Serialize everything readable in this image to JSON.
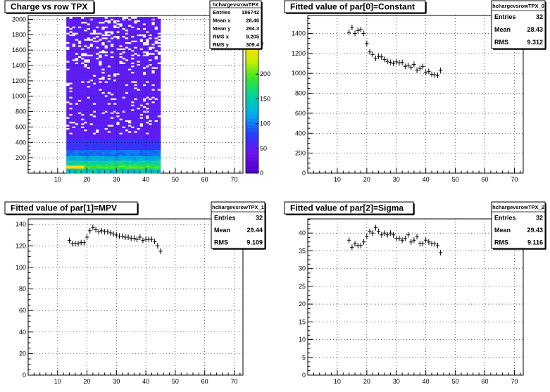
{
  "chart_data": [
    {
      "type": "heatmap",
      "title": "Charge vs row TPX",
      "xlim": [
        0,
        73
      ],
      "ylim": [
        0,
        2050
      ],
      "xticks": [
        10,
        20,
        30,
        40,
        50,
        60,
        70
      ],
      "yticks": [
        200,
        400,
        600,
        800,
        1000,
        1200,
        1400,
        1600,
        1800,
        2000
      ],
      "x_range_filled": [
        13,
        45
      ],
      "grid": true,
      "colorbar": {
        "min": 0,
        "max": 260,
        "ticks": [
          0,
          50,
          100,
          150,
          200
        ],
        "partial_top_label": "0"
      },
      "stats": {
        "name": "hchargevsrowTPX",
        "rows": [
          {
            "label": "Entries",
            "value": "186742"
          },
          {
            "label": "Mean x",
            "value": "28.46"
          },
          {
            "label": "Mean y",
            "value": "294.3"
          },
          {
            "label": "RMS x",
            "value": "9.205"
          },
          {
            "label": "RMS y",
            "value": "309.4"
          }
        ]
      }
    },
    {
      "type": "scatter",
      "title": "Fitted value of par[0]=Constant",
      "xlim": [
        0,
        73
      ],
      "ylim": [
        0,
        1580
      ],
      "xticks": [
        10,
        20,
        30,
        40,
        50,
        60,
        70
      ],
      "yticks": [
        0,
        200,
        400,
        600,
        800,
        1000,
        1200,
        1400
      ],
      "grid": true,
      "x": [
        14,
        15,
        16,
        17,
        18,
        19,
        20,
        21,
        22,
        23,
        24,
        25,
        26,
        27,
        28,
        29,
        30,
        31,
        32,
        33,
        34,
        35,
        36,
        37,
        38,
        39,
        40,
        41,
        42,
        43,
        44,
        45
      ],
      "y": [
        1410,
        1460,
        1400,
        1430,
        1440,
        1400,
        1300,
        1215,
        1190,
        1150,
        1170,
        1165,
        1140,
        1120,
        1110,
        1100,
        1115,
        1105,
        1110,
        1070,
        1080,
        1060,
        1090,
        1030,
        1050,
        1070,
        1010,
        1020,
        990,
        985,
        980,
        1030
      ],
      "stats": {
        "name": "hchargevsrowTPX_0",
        "rows": [
          {
            "label": "Entries",
            "value": "32"
          },
          {
            "label": "Mean",
            "value": "28.43"
          },
          {
            "label": "RMS",
            "value": "9.312"
          }
        ]
      }
    },
    {
      "type": "scatter",
      "title": "Fitted value of par[1]=MPV",
      "xlim": [
        0,
        73
      ],
      "ylim": [
        0,
        145
      ],
      "xticks": [
        10,
        20,
        30,
        40,
        50,
        60,
        70
      ],
      "yticks": [
        0,
        20,
        40,
        60,
        80,
        100,
        120,
        140
      ],
      "grid": true,
      "x": [
        14,
        15,
        16,
        17,
        18,
        19,
        20,
        21,
        22,
        23,
        24,
        25,
        26,
        27,
        28,
        29,
        30,
        31,
        32,
        33,
        34,
        35,
        36,
        37,
        38,
        39,
        40,
        41,
        42,
        43,
        44,
        45
      ],
      "y": [
        125,
        122,
        122,
        122,
        123,
        123,
        128,
        134,
        137,
        135,
        133,
        134,
        133,
        133,
        132,
        131,
        130,
        129,
        129,
        128,
        128,
        127,
        127,
        126,
        128,
        125,
        126,
        126,
        126,
        124,
        120,
        115
      ],
      "stats": {
        "name": "hchargevsrowTPX_1",
        "rows": [
          {
            "label": "Entries",
            "value": "32"
          },
          {
            "label": "Mean",
            "value": "29.44"
          },
          {
            "label": "RMS",
            "value": "9.109"
          }
        ]
      }
    },
    {
      "type": "scatter",
      "title": "Fitted value of par[2]=Sigma",
      "xlim": [
        0,
        73
      ],
      "ylim": [
        0,
        44
      ],
      "xticks": [
        10,
        20,
        30,
        40,
        50,
        60,
        70
      ],
      "yticks": [
        0,
        5,
        10,
        15,
        20,
        25,
        30,
        35,
        40
      ],
      "grid": true,
      "x": [
        14,
        15,
        16,
        17,
        18,
        19,
        20,
        21,
        22,
        23,
        24,
        25,
        26,
        27,
        28,
        29,
        30,
        31,
        32,
        33,
        34,
        35,
        36,
        37,
        38,
        39,
        40,
        41,
        42,
        43,
        44,
        45
      ],
      "y": [
        38,
        36,
        37,
        36.5,
        36.5,
        37.5,
        39,
        40.5,
        40,
        41.5,
        40.5,
        39.5,
        40,
        39.5,
        40,
        39.5,
        38.5,
        38.5,
        38,
        38.5,
        39.5,
        37.5,
        38,
        39,
        37,
        37,
        38,
        37.5,
        37,
        37,
        36.5,
        34.5
      ],
      "stats": {
        "name": "hchargevsrowTPX_2",
        "rows": [
          {
            "label": "Entries",
            "value": "32"
          },
          {
            "label": "Mean",
            "value": "29.43"
          },
          {
            "label": "RMS",
            "value": "9.116"
          }
        ]
      }
    }
  ]
}
